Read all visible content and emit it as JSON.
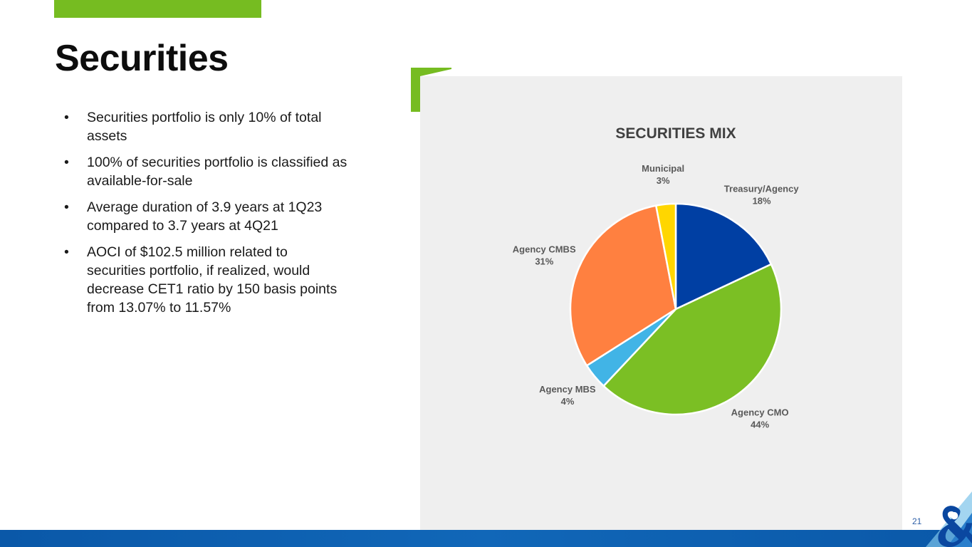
{
  "slide": {
    "title": "Securities",
    "page_number": "21",
    "bullets": [
      "Securities portfolio is only 10% of total assets",
      "100% of securities portfolio is classified as available-for-sale",
      "Average duration of 3.9 years at 1Q23 compared to 3.7 years at 4Q21",
      "AOCI of $102.5 million related to securities portfolio, if realized, would decrease CET1 ratio by 150 basis points from 13.07% to 11.57%"
    ],
    "colors": {
      "accent_green": "#76bc21",
      "brand_blue": "#0a58a8"
    },
    "logo_icon": "ampersand-logo-icon"
  },
  "chart_data": {
    "type": "pie",
    "title": "SECURITIES MIX",
    "slices": [
      {
        "label": "Treasury/Agency",
        "value": 18,
        "display": "18%",
        "color": "#003fa3"
      },
      {
        "label": "Agency CMO",
        "value": 44,
        "display": "44%",
        "color": "#7bbf24"
      },
      {
        "label": "Agency MBS",
        "value": 4,
        "display": "4%",
        "color": "#41b4e6"
      },
      {
        "label": "Agency CMBS",
        "value": 31,
        "display": "31%",
        "color": "#ff8040"
      },
      {
        "label": "Municipal",
        "value": 3,
        "display": "3%",
        "color": "#ffd600"
      }
    ],
    "legend": "none",
    "data_labels": "outside"
  }
}
